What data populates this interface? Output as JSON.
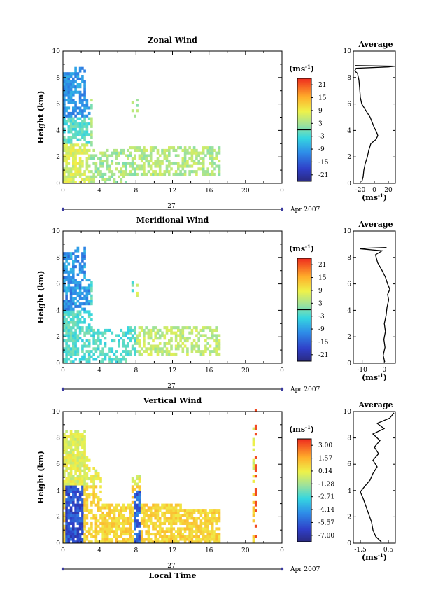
{
  "chart_data": [
    {
      "type": "heatmap",
      "title": "Zonal Wind",
      "ylabel": "Height (km)",
      "xlabel": "",
      "ylim": [
        0,
        10
      ],
      "xlim": [
        0,
        24
      ],
      "x_ticks": [
        "0",
        "4",
        "8",
        "12",
        "16",
        "20",
        "0"
      ],
      "y_ticks": [
        "0",
        "2",
        "4",
        "6",
        "8",
        "10"
      ],
      "date_day": "27",
      "date_month": "Apr 2007",
      "colorbar": {
        "unit_label": "(ms",
        "unit_sup": "-1",
        "ticks": [
          "21",
          "15",
          "9",
          "3",
          "-3",
          "-9",
          "-15",
          "-21"
        ],
        "range": [
          -24,
          24
        ]
      },
      "average": {
        "title": "Average",
        "xlabel": "(ms",
        "xlabel_sup": "-1",
        "x_ticks": [
          "-20",
          "0",
          "20"
        ],
        "x_values": [
          -20,
          0,
          20
        ],
        "xlim": [
          -30,
          30
        ],
        "profile": [
          [
            -18,
            0.1
          ],
          [
            -16,
            0.5
          ],
          [
            -15,
            1.0
          ],
          [
            -13,
            1.5
          ],
          [
            -10,
            2.0
          ],
          [
            -8,
            2.5
          ],
          [
            -5,
            3.0
          ],
          [
            2,
            3.3
          ],
          [
            5,
            3.6
          ],
          [
            3,
            3.9
          ],
          [
            0,
            4.2
          ],
          [
            -3,
            4.6
          ],
          [
            -6,
            5.0
          ],
          [
            -12,
            5.5
          ],
          [
            -18,
            6.0
          ],
          [
            -20,
            6.5
          ],
          [
            -21,
            7.2
          ],
          [
            -22,
            7.8
          ],
          [
            -24,
            8.3
          ],
          [
            -28,
            8.5
          ],
          [
            -26,
            8.7
          ],
          [
            20,
            8.8
          ],
          [
            29,
            8.85
          ],
          [
            -28,
            8.9
          ]
        ]
      }
    },
    {
      "type": "heatmap",
      "title": "Meridional Wind",
      "ylabel": "Height (km)",
      "xlabel": "",
      "ylim": [
        0,
        10
      ],
      "xlim": [
        0,
        24
      ],
      "x_ticks": [
        "0",
        "4",
        "8",
        "12",
        "16",
        "20",
        "0"
      ],
      "y_ticks": [
        "0",
        "2",
        "4",
        "6",
        "8",
        "10"
      ],
      "date_day": "27",
      "date_month": "Apr 2007",
      "colorbar": {
        "unit_label": "(ms",
        "unit_sup": "-1",
        "ticks": [
          "21",
          "15",
          "9",
          "3",
          "-3",
          "-9",
          "-15",
          "-21"
        ],
        "range": [
          -24,
          24
        ]
      },
      "average": {
        "title": "Average",
        "xlabel": "(ms",
        "xlabel_sup": "-1",
        "x_ticks": [
          "-10",
          "0"
        ],
        "x_values": [
          -10,
          0
        ],
        "xlim": [
          -14,
          5
        ],
        "profile": [
          [
            0.2,
            0.1
          ],
          [
            -0.5,
            0.6
          ],
          [
            0.3,
            1.2
          ],
          [
            -0.2,
            1.8
          ],
          [
            0.5,
            2.4
          ],
          [
            0.0,
            3.0
          ],
          [
            0.8,
            3.6
          ],
          [
            1.2,
            4.2
          ],
          [
            2.0,
            4.8
          ],
          [
            1.5,
            5.2
          ],
          [
            2.5,
            5.6
          ],
          [
            1.5,
            6.0
          ],
          [
            0.5,
            6.5
          ],
          [
            -1.0,
            7.0
          ],
          [
            -3.0,
            7.6
          ],
          [
            -4.0,
            8.2
          ],
          [
            -1.0,
            8.5
          ],
          [
            -11,
            8.65
          ],
          [
            -8,
            8.7
          ],
          [
            1,
            8.75
          ]
        ]
      }
    },
    {
      "type": "heatmap",
      "title": "Vertical Wind",
      "ylabel": "Height (km)",
      "xlabel": "Local Time",
      "ylim": [
        0,
        10
      ],
      "xlim": [
        0,
        24
      ],
      "x_ticks": [
        "0",
        "4",
        "8",
        "12",
        "16",
        "20",
        "0"
      ],
      "y_ticks": [
        "0",
        "2",
        "4",
        "6",
        "8",
        "10"
      ],
      "date_day": "27",
      "date_month": "Apr 2007",
      "colorbar": {
        "unit_label": "(ms",
        "unit_sup": "-1",
        "ticks": [
          "3.00",
          "1.57",
          "0.14",
          "-1.28",
          "-2.71",
          "-4.14",
          "-5.57",
          "-7.00"
        ],
        "range": [
          -7.7,
          3.7
        ]
      },
      "average": {
        "title": "Average",
        "xlabel": "(ms",
        "xlabel_sup": "-1",
        "x_ticks": [
          "-1.5",
          "0.5"
        ],
        "x_values": [
          -1.5,
          0.5
        ],
        "xlim": [
          -2.0,
          1.0
        ],
        "profile": [
          [
            0.0,
            0.1
          ],
          [
            -0.4,
            0.5
          ],
          [
            -0.6,
            1.0
          ],
          [
            -0.7,
            1.6
          ],
          [
            -0.9,
            2.2
          ],
          [
            -1.1,
            2.8
          ],
          [
            -1.3,
            3.4
          ],
          [
            -1.5,
            3.9
          ],
          [
            -1.2,
            4.3
          ],
          [
            -0.8,
            4.8
          ],
          [
            -0.6,
            5.3
          ],
          [
            -0.3,
            5.8
          ],
          [
            -0.6,
            6.3
          ],
          [
            -0.2,
            6.8
          ],
          [
            -0.5,
            7.3
          ],
          [
            -0.1,
            7.8
          ],
          [
            -0.6,
            8.3
          ],
          [
            0.2,
            8.7
          ],
          [
            -0.3,
            9.1
          ],
          [
            0.6,
            9.5
          ],
          [
            0.9,
            9.9
          ]
        ]
      }
    }
  ]
}
